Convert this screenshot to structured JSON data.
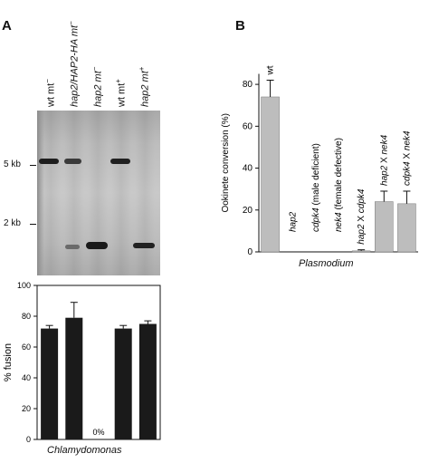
{
  "panelA": {
    "letter": "A",
    "lanes": [
      {
        "main": "wt mt",
        "sup": "−",
        "italic": false
      },
      {
        "main": "hap2/HAP2-HA mt",
        "sup": "−",
        "italic": true
      },
      {
        "main": "hap2 mt",
        "sup": "−",
        "italic": true
      },
      {
        "main": "wt mt",
        "sup": "+",
        "italic": false
      },
      {
        "main": "hap2 mt",
        "sup": "+",
        "italic": true
      }
    ],
    "size_markers": [
      "5 kb",
      "2 kb"
    ],
    "caption": "Chlamydomonas"
  },
  "panelB": {
    "letter": "B",
    "caption": "Plasmodium"
  },
  "chart_data": [
    {
      "type": "bar",
      "categories": [
        "wt mt−",
        "hap2/HAP2-HA mt−",
        "hap2 mt−",
        "wt mt+",
        "hap2 mt+"
      ],
      "values": [
        72,
        79,
        0,
        72,
        75
      ],
      "errors": [
        2,
        10,
        0,
        2,
        2
      ],
      "value_labels": [
        "",
        "",
        "0%",
        "",
        ""
      ],
      "ylabel": "% fusion",
      "ylim": [
        0,
        100
      ],
      "yticks": [
        0,
        20,
        40,
        60,
        80,
        100
      ],
      "bar_color": "#1a1a1a"
    },
    {
      "type": "bar",
      "categories": [
        "wt",
        "hap2",
        "cdpk4 (male deficient)",
        "nek4 (female defective)",
        "hap2 X cdpk4",
        "hap2 X nek4",
        "cdpk4 X nek4"
      ],
      "values": [
        74,
        0,
        0,
        0,
        0.5,
        24,
        23
      ],
      "errors": [
        8,
        0,
        0,
        0,
        0.5,
        5,
        6
      ],
      "ylabel": "Ookinete conversion (%)",
      "ylim": [
        0,
        90
      ],
      "yticks": [
        0,
        20,
        40,
        60,
        80
      ],
      "bar_color": "#bdbdbd"
    }
  ]
}
